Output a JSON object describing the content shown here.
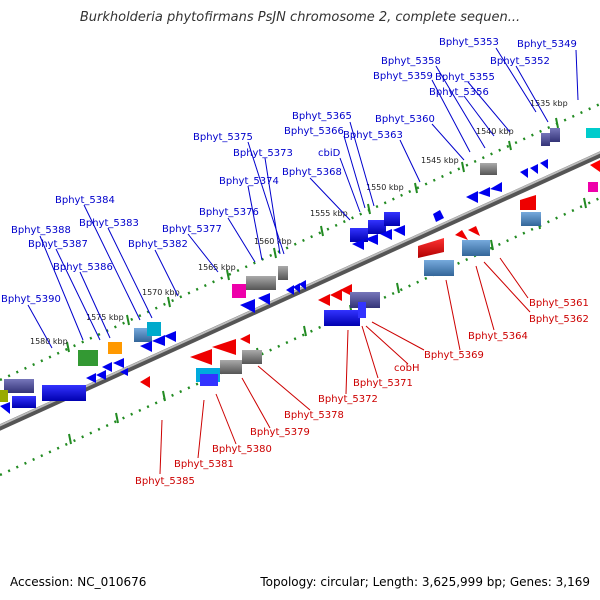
{
  "title": "Burkholderia phytofirmans PsJN chromosome 2, complete sequen...",
  "footer": {
    "accession": "Accession: NC_010676",
    "summary": "Topology: circular; Length: 3,625,999 bp; Genes: 3,169"
  },
  "colors": {
    "forward_label": "#0000cc",
    "reverse_label": "#cc0000",
    "tick": "#228b22",
    "backbone": "#777777"
  },
  "kbp_ticks": [
    "1535 kbp",
    "1540 kbp",
    "1545 kbp",
    "1550 kbp",
    "1555 kbp",
    "1560 kbp",
    "1565 kbp",
    "1570 kbp",
    "1575 kbp",
    "1580 kbp"
  ],
  "forward_genes": [
    "Bphyt_5353",
    "Bphyt_5349",
    "Bphyt_5358",
    "Bphyt_5352",
    "Bphyt_5359",
    "Bphyt_5355",
    "Bphyt_5356",
    "Bphyt_5365",
    "Bphyt_5360",
    "Bphyt_5366",
    "Bphyt_5363",
    "Bphyt_5375",
    "cbiD",
    "Bphyt_5373",
    "Bphyt_5368",
    "Bphyt_5374",
    "Bphyt_5384",
    "Bphyt_5376",
    "Bphyt_5383",
    "Bphyt_5388",
    "Bphyt_5377",
    "Bphyt_5387",
    "Bphyt_5382",
    "Bphyt_5386",
    "Bphyt_5390"
  ],
  "reverse_genes": [
    "Bphyt_5361",
    "Bphyt_5362",
    "Bphyt_5364",
    "Bphyt_5369",
    "cobH",
    "Bphyt_5371",
    "Bphyt_5372",
    "Bphyt_5378",
    "Bphyt_5379",
    "Bphyt_5380",
    "Bphyt_5381",
    "Bphyt_5385"
  ]
}
